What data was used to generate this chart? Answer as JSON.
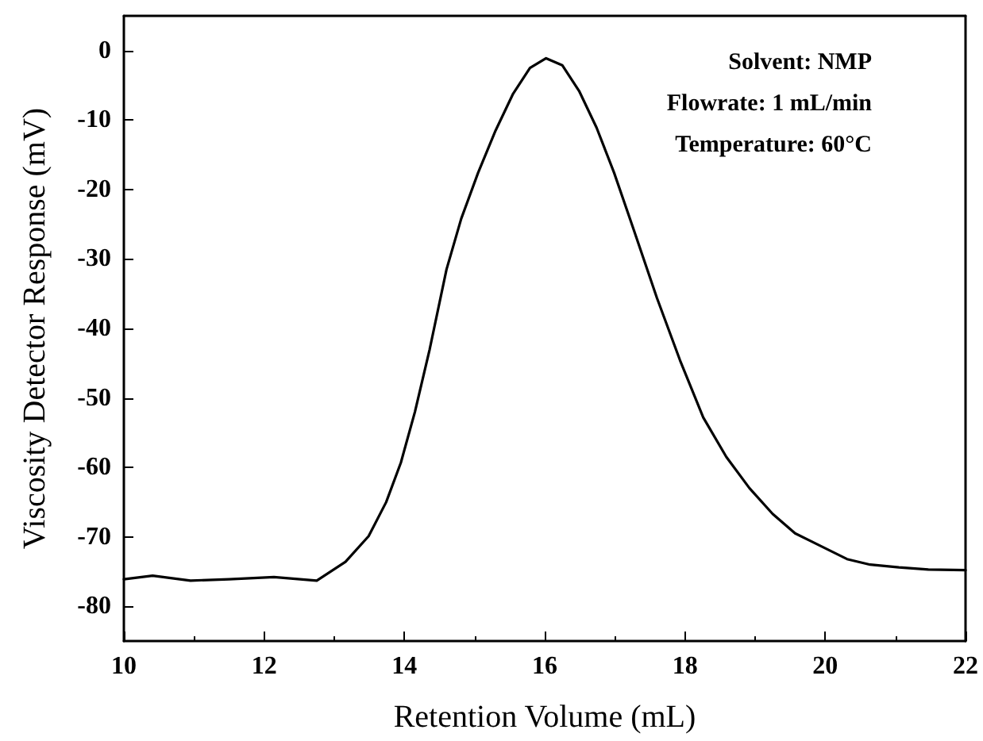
{
  "chart_data": {
    "type": "line",
    "xlabel": "Retention Volume (mL)",
    "ylabel": "Viscosity Detector Response (mV)",
    "annotations": [
      "Solvent: NMP",
      "Flowrate: 1 mL/min",
      "Temperature: 60°C"
    ],
    "x": [
      10,
      10.41,
      10.95,
      11.5,
      12.14,
      12.75,
      13.16,
      13.49,
      13.74,
      13.95,
      14.15,
      14.36,
      14.6,
      14.81,
      15.05,
      15.3,
      15.55,
      15.79,
      16.02,
      16.25,
      16.49,
      16.74,
      16.99,
      17.27,
      17.6,
      17.93,
      18.26,
      18.59,
      18.92,
      19.25,
      19.57,
      19.99,
      20.31,
      20.64,
      21.05,
      21.47,
      22
    ],
    "series": [
      {
        "color": "#000000",
        "values": [
          -76.1,
          -75.6,
          -76.3,
          -76.1,
          -75.8,
          -76.3,
          -73.6,
          -69.9,
          -65.0,
          -59.3,
          -52.0,
          -43.0,
          -31.5,
          -24.2,
          -17.6,
          -11.5,
          -6.2,
          -2.5,
          -1.1,
          -2.1,
          -5.8,
          -11.1,
          -17.6,
          -25.8,
          -35.6,
          -44.6,
          -52.8,
          -58.5,
          -63.0,
          -66.7,
          -69.5,
          -71.6,
          -73.2,
          -74.0,
          -74.4,
          -74.7,
          -74.8
        ]
      }
    ],
    "xlim": [
      10,
      22
    ],
    "xticks": [
      10,
      12,
      14,
      16,
      18,
      20,
      22
    ],
    "ylim": [
      -85,
      5
    ],
    "yticks": [
      -80,
      -70,
      -60,
      -50,
      -40,
      -30,
      -20,
      -10,
      0
    ],
    "grid": false,
    "marker": "none",
    "line_style": "solid"
  }
}
